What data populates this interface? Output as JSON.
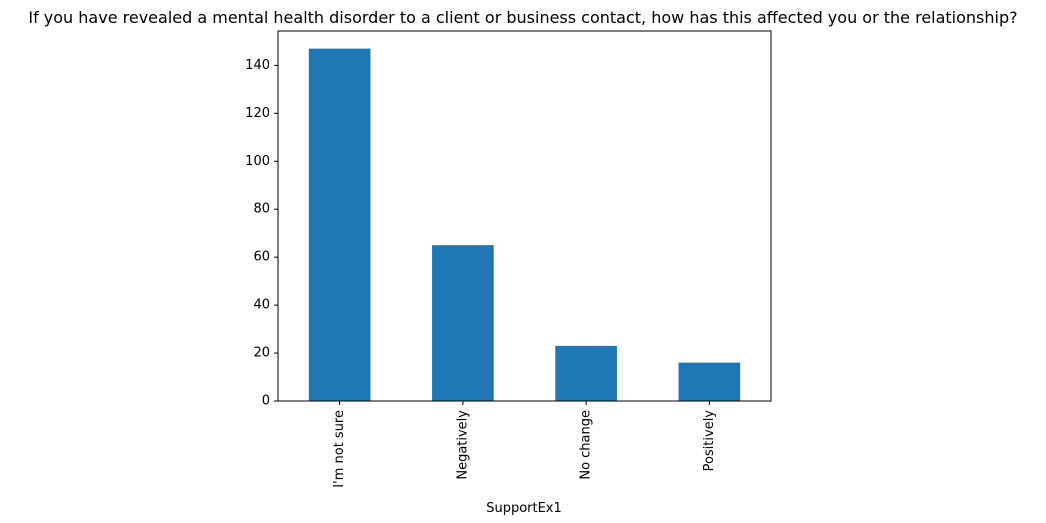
{
  "chart_data": {
    "type": "bar",
    "title": "If you have revealed a mental health disorder to a client or business contact, how has this affected you or the relationship?",
    "xlabel": "SupportEx1",
    "ylabel": "",
    "categories": [
      "I'm not sure",
      "Negatively",
      "No change",
      "Positively"
    ],
    "values": [
      147,
      65,
      23,
      16
    ],
    "ylim": [
      0,
      154.35
    ],
    "yticks": [
      0,
      20,
      40,
      60,
      80,
      100,
      120,
      140
    ],
    "bar_color": "#1f77b4",
    "grid": false,
    "legend": "none"
  }
}
